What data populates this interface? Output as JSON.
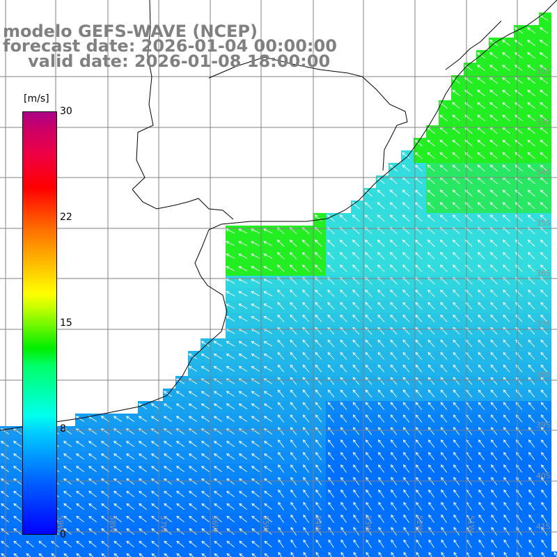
{
  "title": {
    "line1": "modelo GEFS-WAVE (NCEP)",
    "line2": "forecast date: 2026-01-04 00:00:00",
    "line3": "valid date: 2026-01-08 18:00:00"
  },
  "colorbar": {
    "unit": "[m/s]",
    "ticks": [
      "30",
      "22",
      "15",
      "8",
      "0"
    ],
    "colors": [
      "#0000ff",
      "#00ccff",
      "#00ff66",
      "#ffff00",
      "#ff0000",
      "#aa0088"
    ]
  },
  "lat_labels": [
    "32S",
    "33S",
    "34S",
    "35S",
    "36S",
    "37S",
    "38S",
    "39S",
    "40S",
    "41S"
  ],
  "lon_labels": [
    "59W",
    "58W",
    "57W",
    "56W",
    "55W",
    "54W",
    "53W",
    "52W",
    "51W"
  ],
  "colors": {
    "ocean_light": "#33dddd",
    "ocean_mid": "#1aa8ee",
    "ocean_deep": "#0070ff",
    "wind_strong": "#22ee22",
    "land": "#ffffff",
    "grid": "#808080",
    "arrows": "#ffffff"
  }
}
